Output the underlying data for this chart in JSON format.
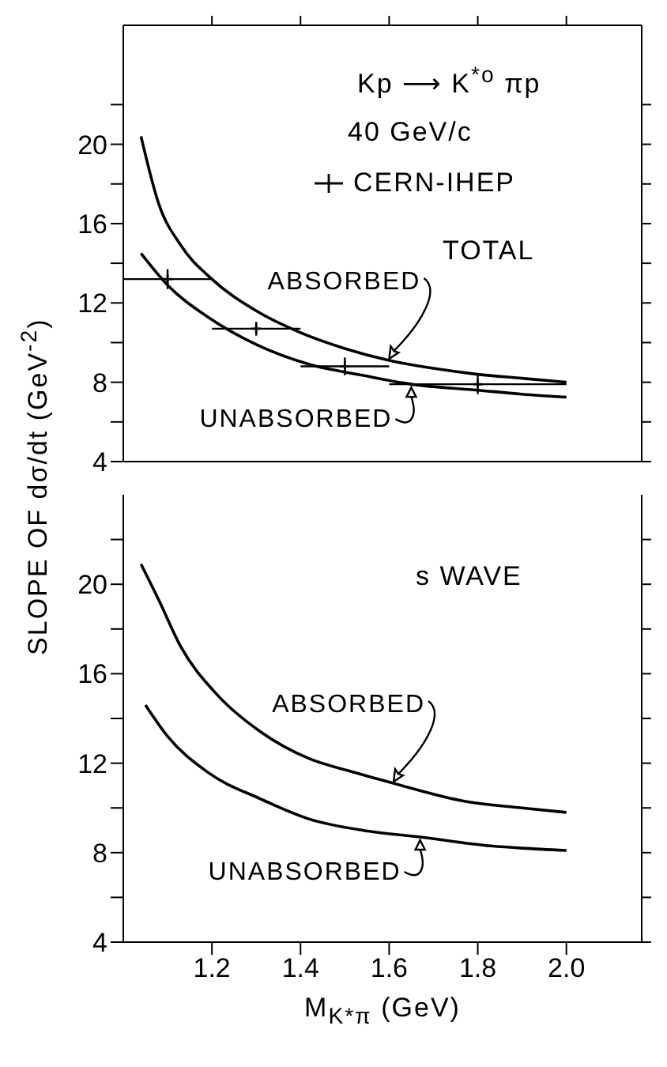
{
  "chart_data": [
    {
      "type": "line",
      "ylabel": "SLOPE OF dσ/dt (GeV$^{-2}$)",
      "annotations": [
        "Kp ⟶ K$^{*o}$ πp",
        "40 GeV/c",
        "TOTAL"
      ],
      "xlim": [
        1.0,
        2.17
      ],
      "xticks": [
        1.2,
        1.4,
        1.6,
        1.8,
        2.0
      ],
      "ylim": [
        4,
        26
      ],
      "yticks": [
        4,
        {
          "value": 6,
          "label": null
        },
        8,
        {
          "value": 10,
          "label": null
        },
        12,
        {
          "value": 14,
          "label": null
        },
        16,
        {
          "value": 18,
          "label": null
        },
        20,
        {
          "value": 22,
          "label": null
        }
      ],
      "tick_labels": "y",
      "grid": false,
      "legend": "top right",
      "marker": "none",
      "series": [
        {
          "name": "ABSORBED",
          "color": "#000000",
          "x": [
            1.04,
            1.08,
            1.13,
            1.2,
            1.3,
            1.4,
            1.5,
            1.6,
            1.7,
            1.8,
            1.9,
            2.0
          ],
          "values": [
            20.4,
            17.0,
            14.9,
            13.2,
            11.6,
            10.5,
            9.7,
            9.1,
            8.7,
            8.4,
            8.2,
            8.0
          ]
        },
        {
          "name": "UNABSORBED",
          "color": "#000000",
          "x": [
            1.04,
            1.1,
            1.19,
            1.3,
            1.42,
            1.54,
            1.65,
            1.8,
            1.9,
            2.0
          ],
          "values": [
            14.5,
            12.9,
            11.3,
            9.9,
            8.9,
            8.35,
            7.9,
            7.6,
            7.4,
            7.25
          ]
        },
        {
          "name": "CERN-IHEP",
          "type": "scatter",
          "marker": "cross",
          "color": "#000000",
          "x": [
            1.1,
            1.3,
            1.5,
            1.8
          ],
          "values": [
            13.2,
            10.7,
            8.8,
            7.9
          ],
          "errors": [
            0.5,
            0.35,
            0.45,
            0.5
          ],
          "xerrors": [
            0.1,
            0.1,
            0.1,
            0.2
          ]
        }
      ]
    },
    {
      "type": "line",
      "xlabel": "M$_{K*π}$ (GeV)",
      "annotations": [
        "s WAVE"
      ],
      "xlim": [
        1.0,
        2.17
      ],
      "xticks": [
        1.2,
        1.4,
        1.6,
        1.8,
        {
          "value": 2.0,
          "label": "2.0"
        }
      ],
      "ylim": [
        4,
        24
      ],
      "yticks": [
        4,
        {
          "value": 6,
          "label": null
        },
        8,
        {
          "value": 10,
          "label": null
        },
        12,
        {
          "value": 14,
          "label": null
        },
        16,
        {
          "value": 18,
          "label": null
        },
        20,
        {
          "value": 22,
          "label": null
        }
      ],
      "grid": false,
      "marker": "none",
      "series": [
        {
          "name": "ABSORBED",
          "color": "#000000",
          "x": [
            1.04,
            1.08,
            1.13,
            1.21,
            1.31,
            1.42,
            1.52,
            1.61,
            1.77,
            1.9,
            2.0
          ],
          "values": [
            20.9,
            19.3,
            17.2,
            15.1,
            13.4,
            12.2,
            11.6,
            11.1,
            10.3,
            10.0,
            9.8
          ]
        },
        {
          "name": "UNABSORBED",
          "color": "#000000",
          "x": [
            1.05,
            1.1,
            1.19,
            1.31,
            1.42,
            1.54,
            1.67,
            1.83,
            1.9,
            2.0
          ],
          "values": [
            14.6,
            13.2,
            11.6,
            10.4,
            9.5,
            9.0,
            8.7,
            8.3,
            8.2,
            8.1
          ]
        }
      ]
    }
  ]
}
